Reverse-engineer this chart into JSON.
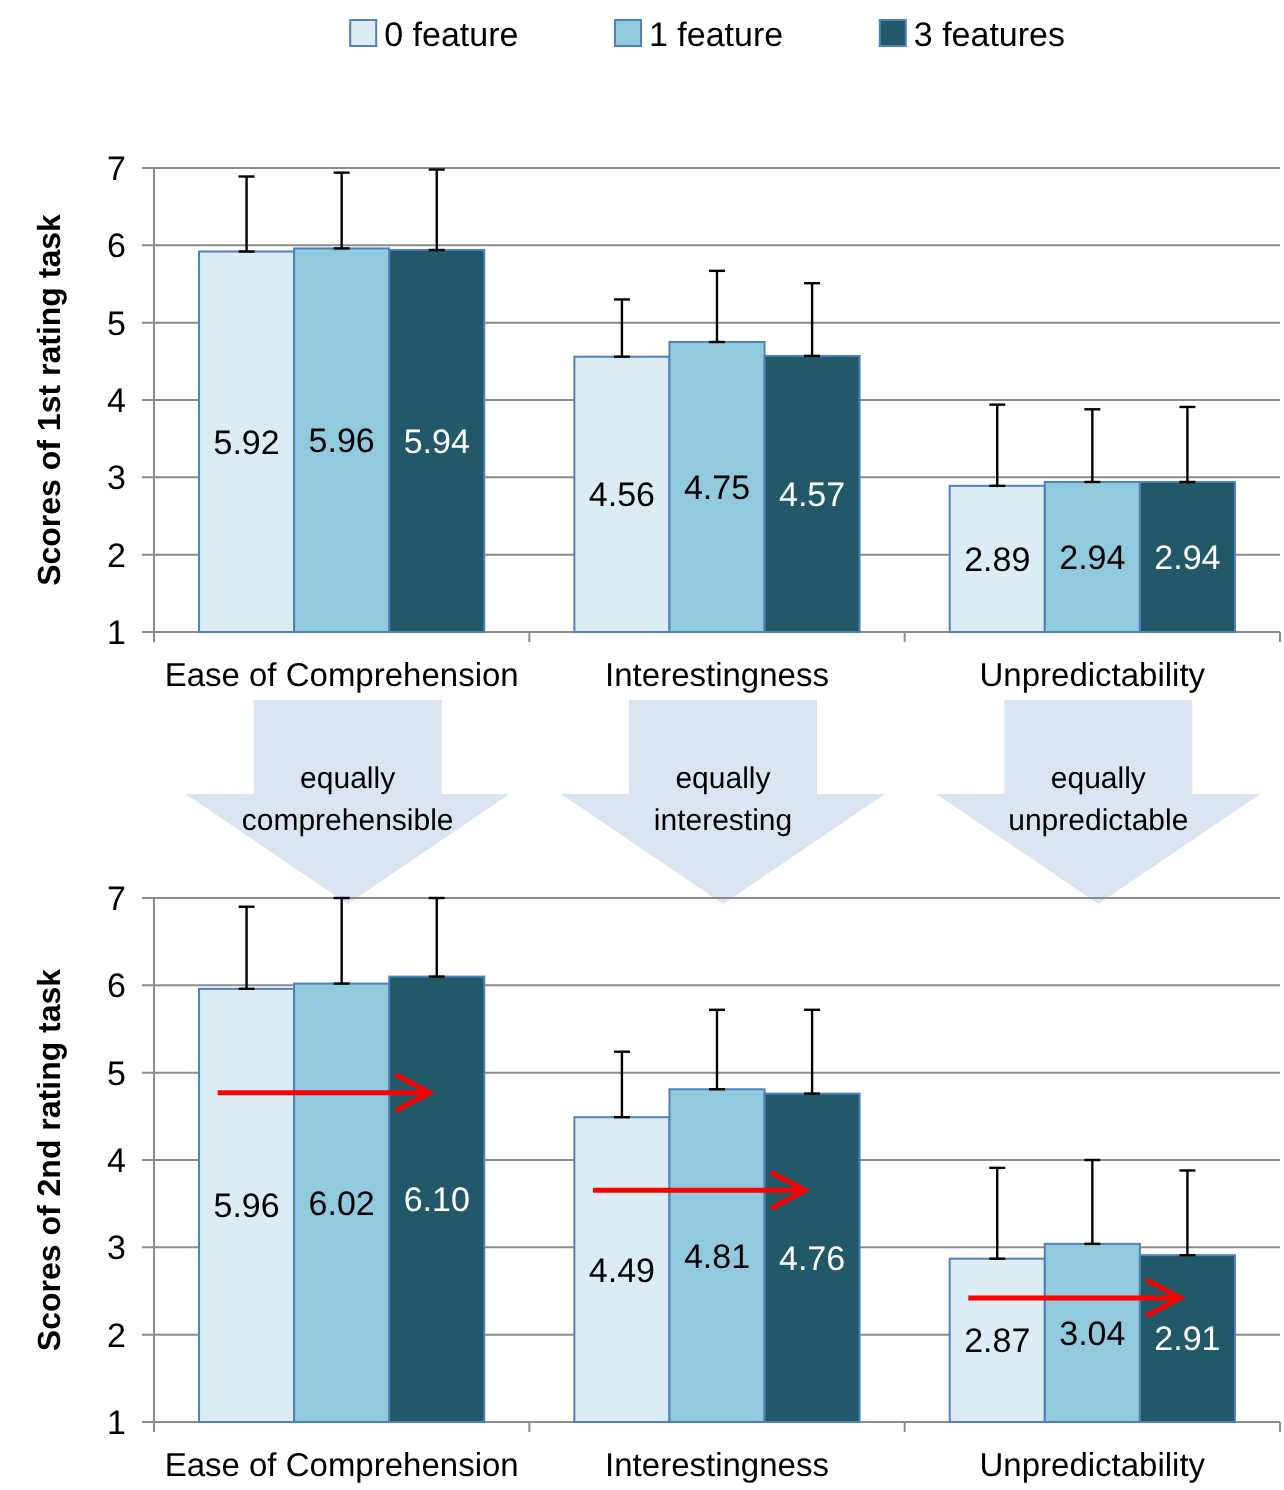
{
  "chart_data": [
    {
      "type": "bar",
      "ylabel": "Scores of 1st rating task",
      "categories": [
        "Ease of Comprehension",
        "Interestingness",
        "Unpredictability"
      ],
      "ylim": [
        1,
        7
      ],
      "yticks": [
        1,
        2,
        3,
        4,
        5,
        6,
        7
      ],
      "grid": "y",
      "legend": "top",
      "data_labels": true,
      "series": [
        {
          "name": "0 feature",
          "color": "#dbecf4",
          "values": [
            5.92,
            4.56,
            2.89
          ],
          "errors": [
            [
              5.92,
              6.89
            ],
            [
              4.56,
              5.3
            ],
            [
              2.89,
              3.94
            ]
          ]
        },
        {
          "name": "1 feature",
          "color": "#92cadd",
          "values": [
            5.96,
            4.75,
            2.94
          ],
          "errors": [
            [
              5.96,
              6.94
            ],
            [
              4.75,
              5.67
            ],
            [
              2.94,
              3.88
            ]
          ]
        },
        {
          "name": "3 features",
          "color": "#215968",
          "values": [
            5.94,
            4.57,
            2.94
          ],
          "errors": [
            [
              5.94,
              6.98
            ],
            [
              4.57,
              5.51
            ],
            [
              2.94,
              3.91
            ]
          ]
        }
      ],
      "annotations": [
        "equally comprehensible",
        "equally interesting",
        "equally unpredictable"
      ]
    },
    {
      "type": "bar",
      "ylabel": "Scores of 2nd rating task",
      "categories": [
        "Ease of Comprehension",
        "Interestingness",
        "Unpredictability"
      ],
      "ylim": [
        1,
        7
      ],
      "yticks": [
        1,
        2,
        3,
        4,
        5,
        6,
        7
      ],
      "grid": "y",
      "data_labels": true,
      "series": [
        {
          "color": "#dbecf4",
          "values": [
            5.96,
            4.49,
            2.87
          ],
          "errors": [
            [
              5.96,
              6.9
            ],
            [
              4.49,
              5.24
            ],
            [
              2.87,
              3.91
            ]
          ]
        },
        {
          "color": "#92cadd",
          "values": [
            6.02,
            4.81,
            3.04
          ],
          "errors": [
            [
              6.02,
              7
            ],
            [
              4.81,
              5.72
            ],
            [
              3.04,
              4.0
            ]
          ]
        },
        {
          "color": "#215968",
          "values": [
            6.1,
            4.76,
            2.91
          ],
          "value_labels": [
            "6.10",
            "4.76",
            "2.91"
          ],
          "errors": [
            [
              6.1,
              7
            ],
            [
              4.76,
              5.72
            ],
            [
              2.91,
              3.88
            ]
          ]
        }
      ]
    }
  ]
}
